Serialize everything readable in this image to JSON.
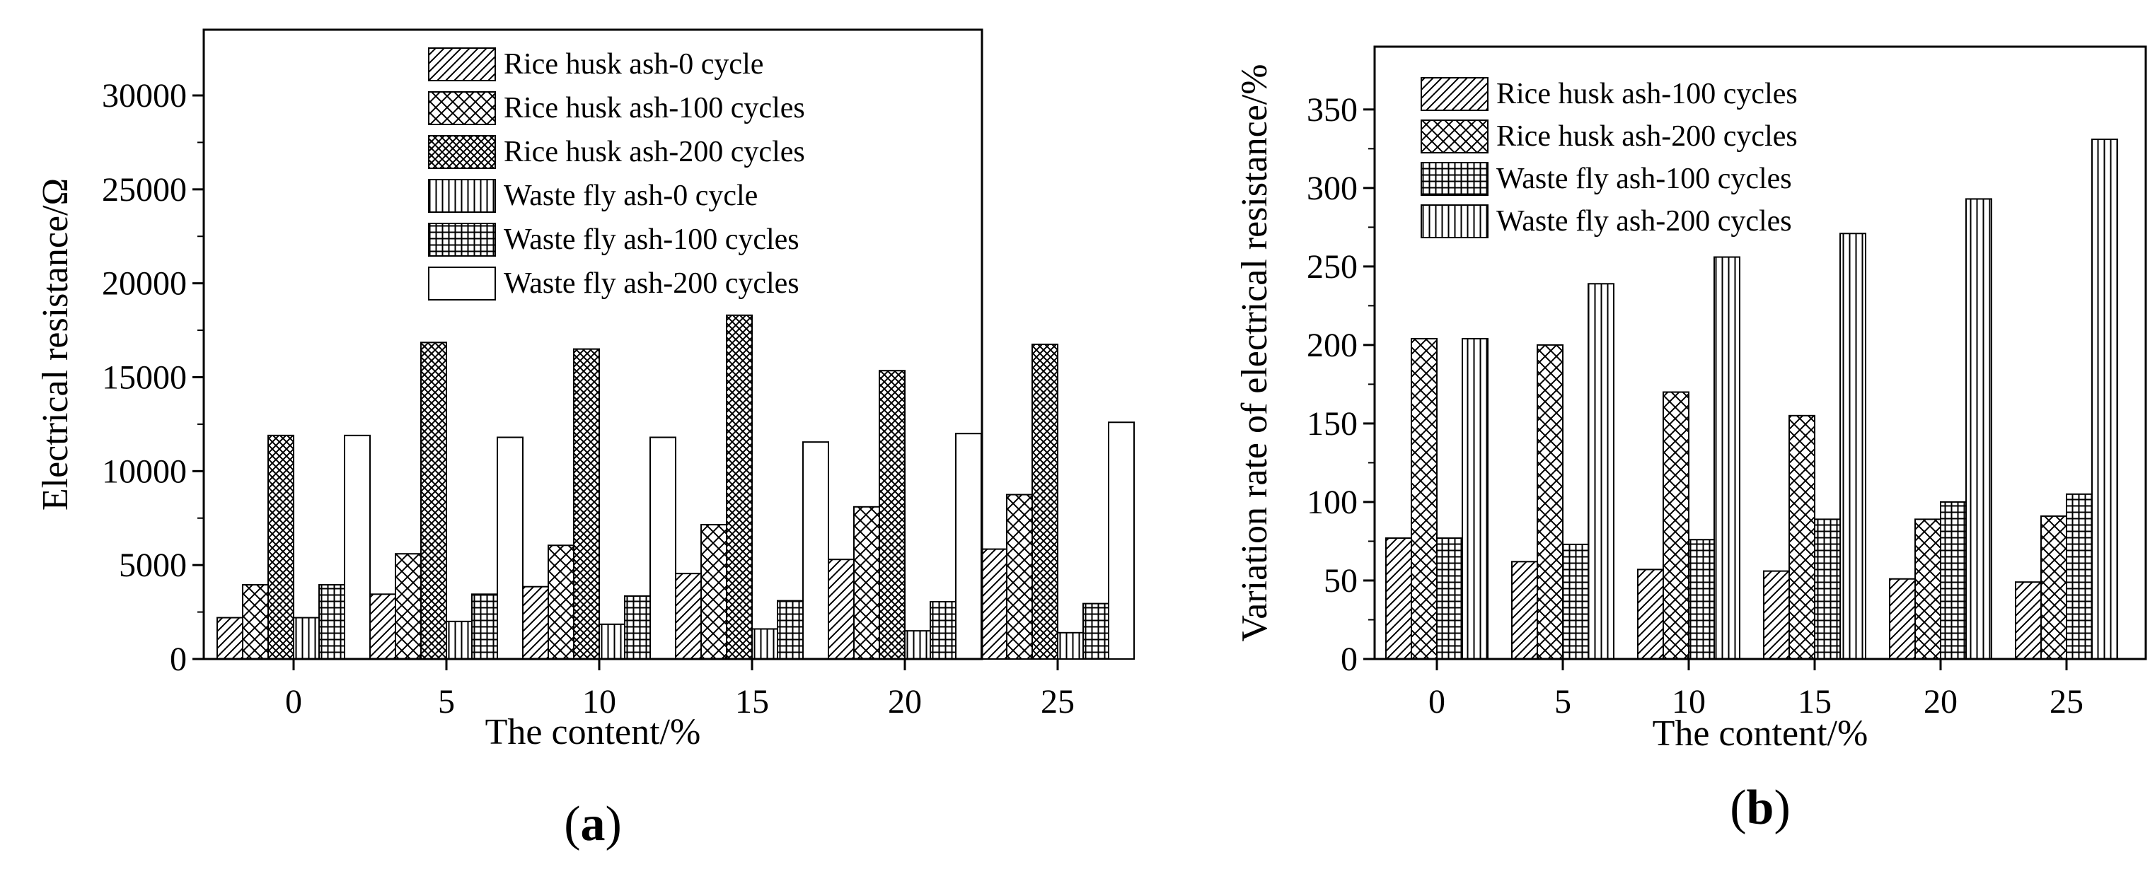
{
  "chart_data": [
    {
      "type": "bar",
      "panel_label": "a",
      "categories": [
        "0",
        "5",
        "10",
        "15",
        "20",
        "25"
      ],
      "xlabel": "The content/%",
      "ylabel": "Electrical resistance/Ω",
      "ylim": [
        0,
        33500
      ],
      "yticks": [
        0,
        5000,
        10000,
        15000,
        20000,
        25000,
        30000
      ],
      "ytick_labels": [
        "0",
        "5000",
        "10000",
        "15000",
        "20000",
        "25000",
        "30000"
      ],
      "legend_position": "top-right",
      "series": [
        {
          "name": "Rice husk ash-0 cycle",
          "pattern": "diag",
          "values": [
            2200,
            3450,
            3850,
            4550,
            5300,
            5850
          ]
        },
        {
          "name": "Rice husk ash-100 cycles",
          "pattern": "cross",
          "values": [
            3950,
            5600,
            6050,
            7150,
            8100,
            8750
          ]
        },
        {
          "name": "Rice husk ash-200 cycles",
          "pattern": "crossdense",
          "values": [
            11900,
            16850,
            16500,
            18300,
            15350,
            16750
          ]
        },
        {
          "name": "Waste fly ash-0 cycle",
          "pattern": "vert",
          "values": [
            2200,
            2000,
            1850,
            1600,
            1500,
            1400
          ]
        },
        {
          "name": "Waste fly ash-100 cycles",
          "pattern": "grid",
          "values": [
            3950,
            3450,
            3350,
            3100,
            3050,
            2950
          ]
        },
        {
          "name": "Waste fly ash-200 cycles",
          "pattern": "none",
          "values": [
            11900,
            11800,
            11800,
            11550,
            12000,
            12600
          ]
        }
      ]
    },
    {
      "type": "bar",
      "panel_label": "b",
      "categories": [
        "0",
        "5",
        "10",
        "15",
        "20",
        "25"
      ],
      "xlabel": "The content/%",
      "ylabel": "Variation rate of electrical resistance/%",
      "ylim": [
        0,
        390
      ],
      "yticks": [
        0,
        50,
        100,
        150,
        200,
        250,
        300,
        350
      ],
      "ytick_labels": [
        "0",
        "50",
        "100",
        "150",
        "200",
        "250",
        "300",
        "350"
      ],
      "legend_position": "top-left",
      "series": [
        {
          "name": "Rice husk ash-100 cycles",
          "pattern": "diag",
          "values": [
            77,
            62,
            57,
            56,
            51,
            49
          ]
        },
        {
          "name": "Rice husk ash-200 cycles",
          "pattern": "cross",
          "values": [
            204,
            200,
            170,
            155,
            89,
            91
          ]
        },
        {
          "name": "Waste fly ash-100 cycles",
          "pattern": "grid",
          "values": [
            77,
            73,
            76,
            89,
            100,
            105
          ]
        },
        {
          "name": "Waste fly ash-200 cycles",
          "pattern": "vert",
          "values": [
            204,
            239,
            256,
            271,
            293,
            331
          ]
        }
      ]
    }
  ]
}
